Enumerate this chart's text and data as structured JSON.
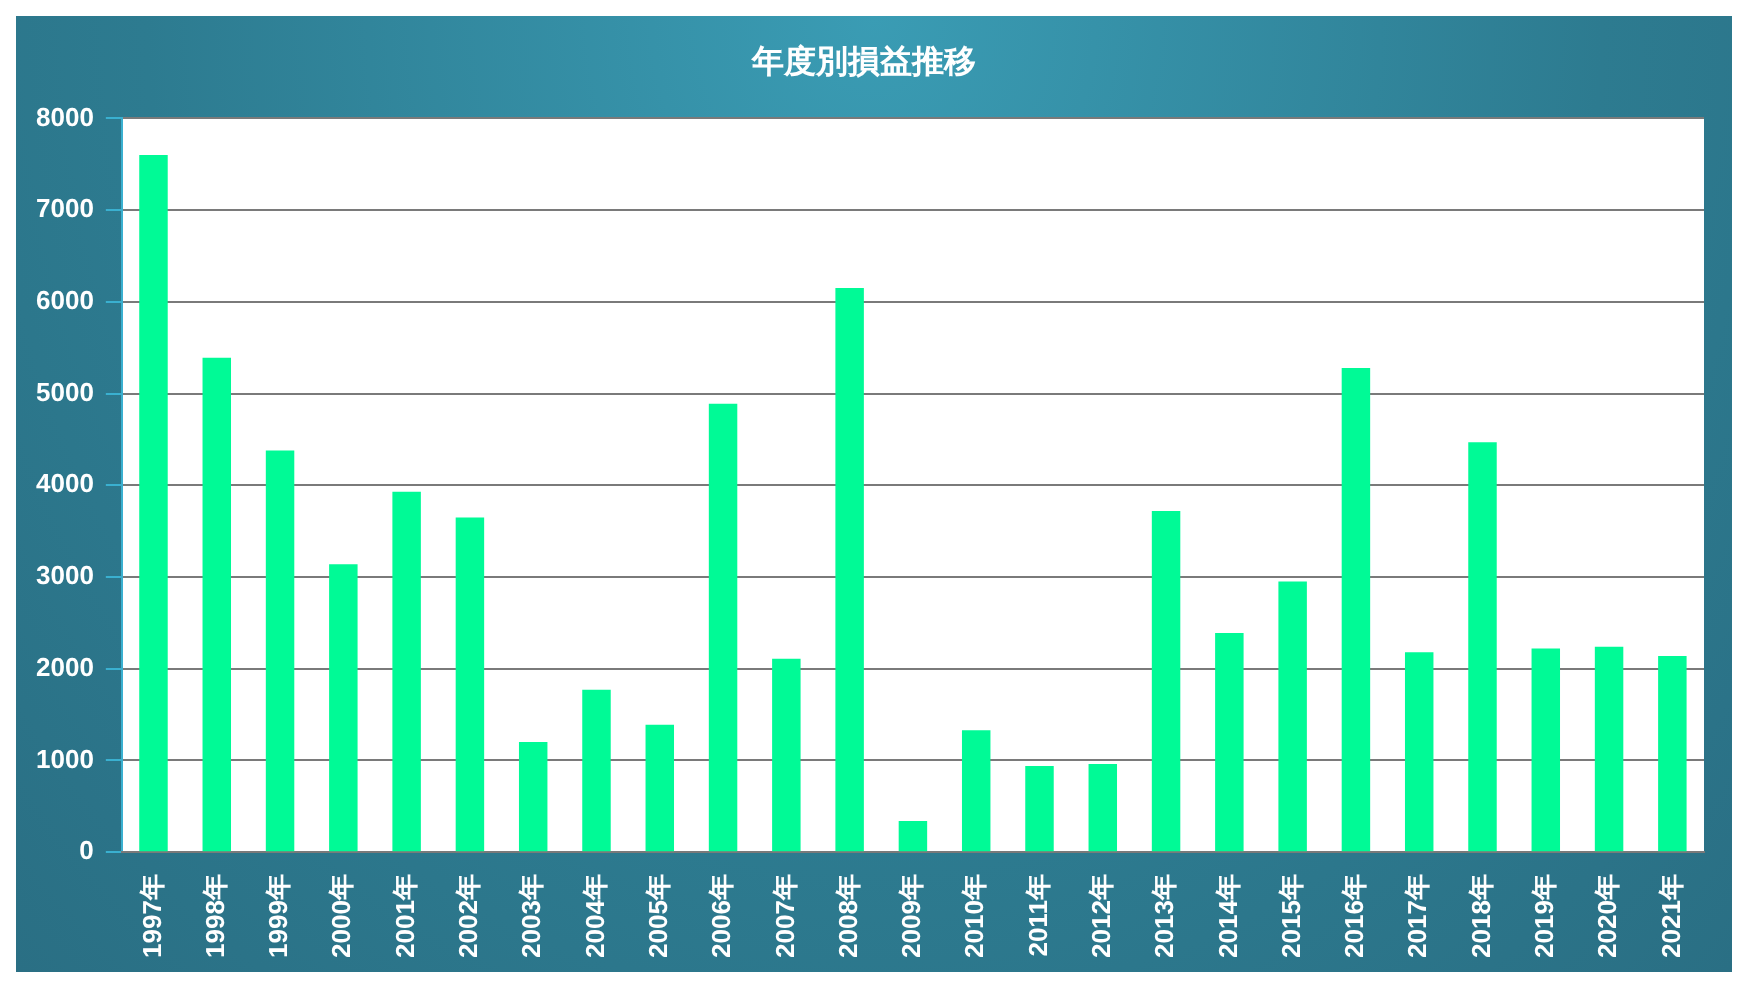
{
  "chart_data": {
    "type": "bar",
    "title": "年度別損益推移",
    "categories": [
      "1997年",
      "1998年",
      "1999年",
      "2000年",
      "2001年",
      "2002年",
      "2003年",
      "2004年",
      "2005年",
      "2006年",
      "2007年",
      "2008年",
      "2009年",
      "2010年",
      "2011年",
      "2012年",
      "2013年",
      "2014年",
      "2015年",
      "2016年",
      "2017年",
      "2018年",
      "2019年",
      "2020年",
      "2021年"
    ],
    "values": [
      7600,
      5390,
      4380,
      3140,
      3930,
      3650,
      1200,
      1770,
      1390,
      4890,
      2110,
      6150,
      340,
      1330,
      940,
      960,
      3720,
      2390,
      2950,
      5280,
      2180,
      4470,
      2220,
      2240,
      2140
    ],
    "color": "#00fa96",
    "ylim": [
      0,
      8000
    ],
    "yticks": [
      0,
      1000,
      2000,
      3000,
      4000,
      5000,
      6000,
      7000,
      8000
    ],
    "grid": "y"
  }
}
